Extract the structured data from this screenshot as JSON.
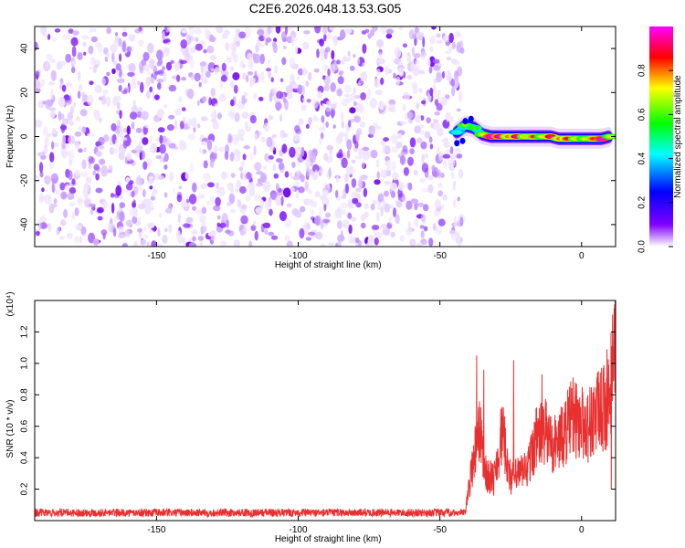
{
  "title": "C2E6.2026.048.13.53.G05",
  "chart_data": [
    {
      "type": "heatmap",
      "xlabel": "Height of straight line (km)",
      "ylabel": "Frequency (Hz)",
      "xlim": [
        -193,
        12
      ],
      "ylim": [
        -50,
        50
      ],
      "xticks": [
        -150,
        -100,
        -50,
        0
      ],
      "yticks": [
        -40,
        -20,
        0,
        20,
        40
      ],
      "noise_region_x": [
        -193,
        -44
      ],
      "signal_track": [
        {
          "x": -44,
          "y": 2,
          "amp": 0.35
        },
        {
          "x": -41,
          "y": 5,
          "amp": 0.55
        },
        {
          "x": -38,
          "y": 4,
          "amp": 0.5
        },
        {
          "x": -35,
          "y": 1,
          "amp": 0.6
        },
        {
          "x": -32,
          "y": 0,
          "amp": 0.95
        },
        {
          "x": -29,
          "y": 0,
          "amp": 0.9
        },
        {
          "x": -26,
          "y": 0,
          "amp": 0.7
        },
        {
          "x": -23,
          "y": 0,
          "amp": 0.85
        },
        {
          "x": -20,
          "y": 0,
          "amp": 0.65
        },
        {
          "x": -17,
          "y": 0,
          "amp": 0.75
        },
        {
          "x": -14,
          "y": 0,
          "amp": 0.6
        },
        {
          "x": -11,
          "y": 0,
          "amp": 0.85
        },
        {
          "x": -8,
          "y": -1,
          "amp": 0.7
        },
        {
          "x": -5,
          "y": -1,
          "amp": 0.8
        },
        {
          "x": -2,
          "y": -1,
          "amp": 0.65
        },
        {
          "x": 1,
          "y": -1,
          "amp": 0.6
        },
        {
          "x": 4,
          "y": -1,
          "amp": 0.75
        },
        {
          "x": 7,
          "y": -1,
          "amp": 0.95
        },
        {
          "x": 10,
          "y": 0,
          "amp": 0.6
        }
      ],
      "colorbar": {
        "label": "Normalized spectral amplitude",
        "range": [
          0,
          1
        ],
        "ticks": [
          0.0,
          0.2,
          0.4,
          0.6,
          0.8
        ],
        "colors": [
          "#ffffff",
          "#8000ff",
          "#0000ff",
          "#00ffff",
          "#00ff00",
          "#ffff00",
          "#ff0000",
          "#ff00ff"
        ]
      }
    },
    {
      "type": "line",
      "xlabel": "Height of straight line (km)",
      "ylabel": "SNR (10 * v/v)",
      "y_multiplier": "(x10⁴)",
      "xlim": [
        -193,
        12
      ],
      "ylim": [
        0,
        14000
      ],
      "xticks": [
        -150,
        -100,
        -50,
        0
      ],
      "yticks": [
        0.2,
        0.4,
        0.6,
        0.8,
        1.0,
        1.2
      ],
      "color": "#e83030",
      "baseline": 500,
      "envelope": [
        {
          "x": -193,
          "y": 500
        },
        {
          "x": -45,
          "y": 500
        },
        {
          "x": -41,
          "y": 800
        },
        {
          "x": -38,
          "y": 5500
        },
        {
          "x": -36,
          "y": 8000
        },
        {
          "x": -34,
          "y": 4000
        },
        {
          "x": -31,
          "y": 3500
        },
        {
          "x": -28,
          "y": 7500
        },
        {
          "x": -25,
          "y": 3500
        },
        {
          "x": -22,
          "y": 4000
        },
        {
          "x": -19,
          "y": 4500
        },
        {
          "x": -16,
          "y": 7000
        },
        {
          "x": -13,
          "y": 7500
        },
        {
          "x": -10,
          "y": 6500
        },
        {
          "x": -7,
          "y": 7000
        },
        {
          "x": -4,
          "y": 8500
        },
        {
          "x": -1,
          "y": 8500
        },
        {
          "x": 2,
          "y": 8000
        },
        {
          "x": 5,
          "y": 9000
        },
        {
          "x": 8,
          "y": 9500
        },
        {
          "x": 10,
          "y": 10000
        },
        {
          "x": 11,
          "y": 13500
        }
      ],
      "peaks": [
        {
          "x": -37,
          "y": 10500
        },
        {
          "x": -34.5,
          "y": 9600
        },
        {
          "x": -24,
          "y": 10200
        },
        {
          "x": -14,
          "y": 9300
        },
        {
          "x": -3,
          "y": 9100
        },
        {
          "x": 9,
          "y": 10900
        },
        {
          "x": 10.5,
          "y": 2000
        },
        {
          "x": 11.5,
          "y": 13500
        }
      ]
    }
  ]
}
